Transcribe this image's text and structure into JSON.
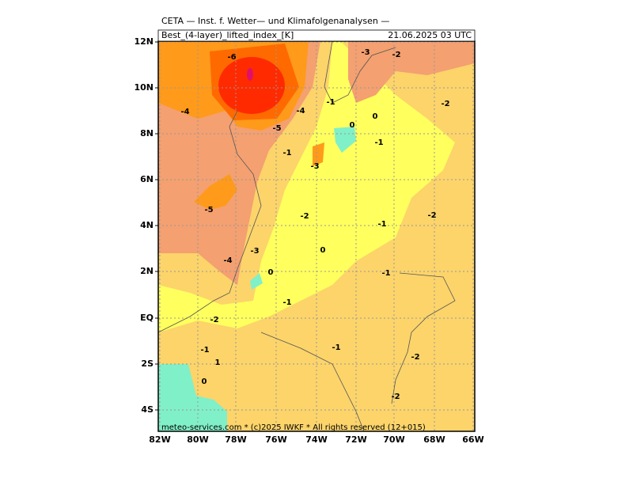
{
  "header": {
    "title": "CETA — Inst. f. Wetter— und Klimafolgenanalysen —",
    "field": "Best_(4-layer)_lifted_index_[K]",
    "valid_time": "21.06.2025 03 UTC"
  },
  "footer": "meteo-services.com * (c)2025 IWKF * All rights reserved (12+015)",
  "y_axis_labels": [
    "12N",
    "10N",
    "8N",
    "6N",
    "4N",
    "2N",
    "EQ",
    "2S",
    "4S"
  ],
  "x_axis_labels": [
    "82W",
    "80W",
    "78W",
    "76W",
    "74W",
    "72W",
    "70W",
    "68W",
    "66W"
  ],
  "contour_labels": [
    "-6",
    "-4",
    "-5",
    "-4",
    "-1",
    "0",
    "0",
    "-1",
    "-1",
    "-3",
    "-3",
    "-2",
    "-2",
    "-5",
    "-2",
    "-1",
    "-2",
    "-3",
    "-4",
    "0",
    "0",
    "-1",
    "-1",
    "-2",
    "-1",
    "1",
    "0",
    "-1",
    "-2",
    "-2"
  ]
}
